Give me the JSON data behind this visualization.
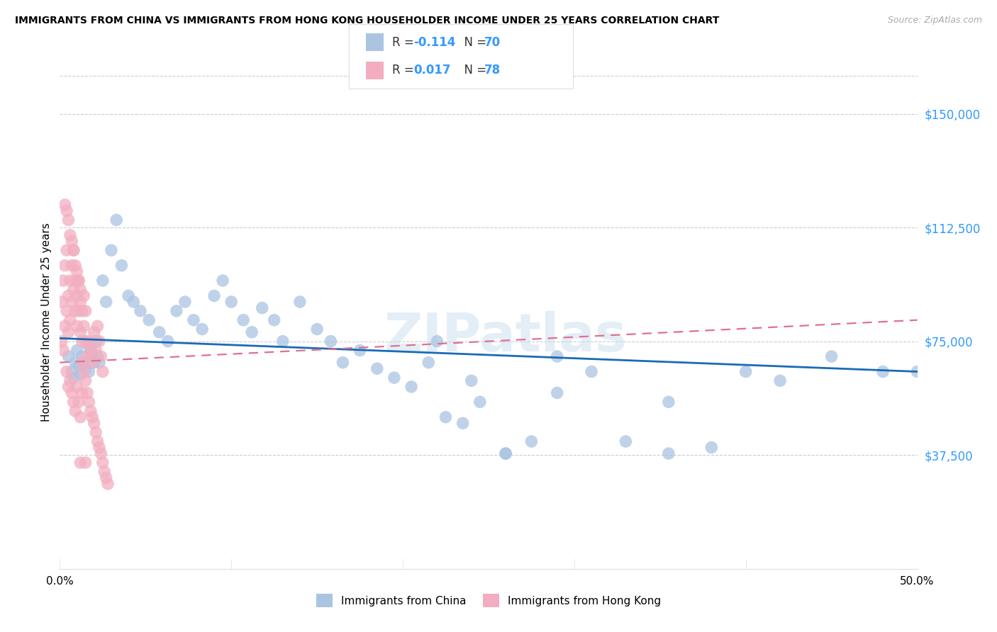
{
  "title": "IMMIGRANTS FROM CHINA VS IMMIGRANTS FROM HONG KONG HOUSEHOLDER INCOME UNDER 25 YEARS CORRELATION CHART",
  "source": "Source: ZipAtlas.com",
  "ylabel": "Householder Income Under 25 years",
  "ytick_values": [
    37500,
    75000,
    112500,
    150000
  ],
  "ymin": 0,
  "ymax": 162500,
  "xmin": 0.0,
  "xmax": 0.5,
  "legend_r_china": "-0.114",
  "legend_n_china": "70",
  "legend_r_hk": "0.017",
  "legend_n_hk": "78",
  "color_china": "#aac4e2",
  "color_hk": "#f2aec0",
  "line_color_china": "#1a6bb5",
  "line_color_hk": "#e07090",
  "china_x": [
    0.005,
    0.007,
    0.008,
    0.009,
    0.01,
    0.011,
    0.012,
    0.013,
    0.014,
    0.015,
    0.016,
    0.017,
    0.018,
    0.019,
    0.02,
    0.021,
    0.022,
    0.023,
    0.025,
    0.027,
    0.03,
    0.033,
    0.036,
    0.04,
    0.043,
    0.047,
    0.052,
    0.058,
    0.063,
    0.068,
    0.073,
    0.078,
    0.083,
    0.09,
    0.095,
    0.1,
    0.107,
    0.112,
    0.118,
    0.125,
    0.13,
    0.14,
    0.15,
    0.158,
    0.165,
    0.175,
    0.185,
    0.195,
    0.205,
    0.215,
    0.225,
    0.235,
    0.245,
    0.26,
    0.275,
    0.29,
    0.31,
    0.33,
    0.355,
    0.38,
    0.4,
    0.42,
    0.45,
    0.48,
    0.5,
    0.355,
    0.29,
    0.26,
    0.24,
    0.22
  ],
  "china_y": [
    70000,
    65000,
    63000,
    68000,
    72000,
    67000,
    64000,
    70000,
    68000,
    66000,
    74000,
    65000,
    72000,
    70000,
    68000,
    75000,
    70000,
    68000,
    95000,
    88000,
    105000,
    115000,
    100000,
    90000,
    88000,
    85000,
    82000,
    78000,
    75000,
    85000,
    88000,
    82000,
    79000,
    90000,
    95000,
    88000,
    82000,
    78000,
    86000,
    82000,
    75000,
    88000,
    79000,
    75000,
    68000,
    72000,
    66000,
    63000,
    60000,
    68000,
    50000,
    48000,
    55000,
    38000,
    42000,
    70000,
    65000,
    42000,
    38000,
    40000,
    65000,
    62000,
    70000,
    65000,
    65000,
    55000,
    58000,
    38000,
    62000,
    75000
  ],
  "hk_x": [
    0.001,
    0.001,
    0.002,
    0.002,
    0.003,
    0.003,
    0.004,
    0.004,
    0.005,
    0.005,
    0.006,
    0.006,
    0.007,
    0.007,
    0.008,
    0.008,
    0.009,
    0.009,
    0.01,
    0.01,
    0.011,
    0.011,
    0.012,
    0.012,
    0.013,
    0.013,
    0.014,
    0.014,
    0.015,
    0.015,
    0.016,
    0.017,
    0.018,
    0.019,
    0.02,
    0.021,
    0.022,
    0.023,
    0.024,
    0.025,
    0.004,
    0.005,
    0.006,
    0.007,
    0.008,
    0.009,
    0.01,
    0.011,
    0.012,
    0.013,
    0.003,
    0.004,
    0.005,
    0.006,
    0.007,
    0.008,
    0.009,
    0.01,
    0.011,
    0.012,
    0.013,
    0.014,
    0.015,
    0.016,
    0.017,
    0.018,
    0.019,
    0.02,
    0.021,
    0.022,
    0.023,
    0.024,
    0.025,
    0.026,
    0.027,
    0.028,
    0.012,
    0.015
  ],
  "hk_y": [
    75000,
    88000,
    72000,
    95000,
    80000,
    100000,
    85000,
    105000,
    78000,
    90000,
    82000,
    95000,
    88000,
    100000,
    92000,
    105000,
    85000,
    95000,
    80000,
    90000,
    85000,
    95000,
    78000,
    88000,
    75000,
    85000,
    80000,
    90000,
    75000,
    85000,
    70000,
    75000,
    72000,
    68000,
    78000,
    72000,
    80000,
    75000,
    70000,
    65000,
    65000,
    60000,
    62000,
    58000,
    55000,
    52000,
    60000,
    55000,
    50000,
    58000,
    120000,
    118000,
    115000,
    110000,
    108000,
    105000,
    100000,
    98000,
    95000,
    92000,
    68000,
    65000,
    62000,
    58000,
    55000,
    52000,
    50000,
    48000,
    45000,
    42000,
    40000,
    38000,
    35000,
    32000,
    30000,
    28000,
    35000,
    35000
  ]
}
